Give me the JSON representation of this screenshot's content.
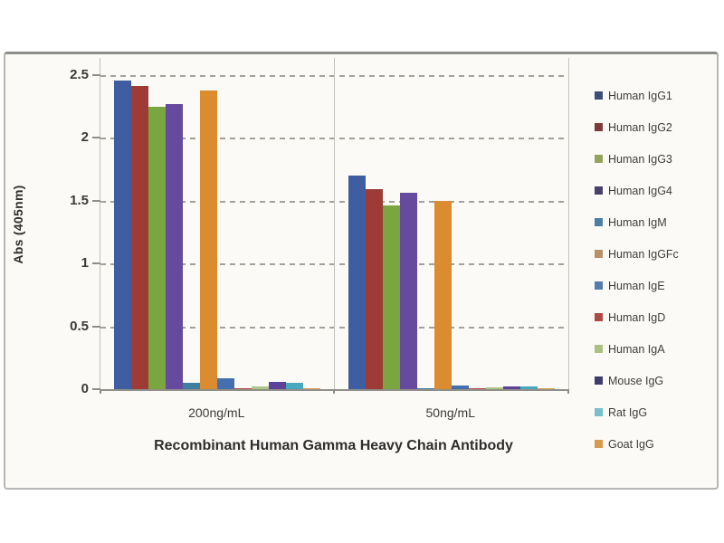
{
  "chart_data": {
    "type": "bar",
    "title": "Recombinant Human Gamma Heavy Chain Antibody",
    "ylabel": "Abs (405nm)",
    "xlabel": "",
    "categories": [
      "200ng/mL",
      "50ng/mL"
    ],
    "ylim": [
      0,
      2.5
    ],
    "yticks": [
      2.5,
      2,
      1.5,
      1,
      0.5,
      0
    ],
    "ytick_labels": [
      "2.5",
      "2",
      "1.5",
      "1",
      "0.5",
      "0"
    ],
    "grid": "horizontal dashed gridlines at every 0.5; vertical divider between category groups",
    "legend_position": "right",
    "series": [
      {
        "name": "Human IgG1",
        "color": "#3e5ea1",
        "swatch": "#3f4c7c",
        "values": [
          2.46,
          1.7
        ]
      },
      {
        "name": "Human IgG2",
        "color": "#9e3b36",
        "swatch": "#7e3a3a",
        "values": [
          2.41,
          1.59
        ]
      },
      {
        "name": "Human IgG3",
        "color": "#7aa63f",
        "swatch": "#94a35c",
        "values": [
          2.25,
          1.46
        ]
      },
      {
        "name": "Human IgG4",
        "color": "#654a9e",
        "swatch": "#49406b",
        "values": [
          2.27,
          1.56
        ]
      },
      {
        "name": "Human IgM",
        "color": "#3f7fa0",
        "swatch": "#4c7fa3",
        "values": [
          0.05,
          0.01
        ]
      },
      {
        "name": "Human IgGFc",
        "color": "#da8c2e",
        "swatch": "#b98f67",
        "values": [
          2.38,
          1.5
        ]
      },
      {
        "name": "Human IgE",
        "color": "#4470b0",
        "swatch": "#587bac",
        "values": [
          0.09,
          0.03
        ]
      },
      {
        "name": "Human IgD",
        "color": "#b44a42",
        "swatch": "#ae4a43",
        "values": [
          0.01,
          0.01
        ]
      },
      {
        "name": "Human IgA",
        "color": "#aec489",
        "swatch": "#abc183",
        "values": [
          0.02,
          0.015
        ]
      },
      {
        "name": "Mouse IgG",
        "color": "#5c4397",
        "swatch": "#3f3c6d",
        "values": [
          0.06,
          0.025
        ]
      },
      {
        "name": "Rat IgG",
        "color": "#48a8be",
        "swatch": "#79becb",
        "values": [
          0.05,
          0.02
        ]
      },
      {
        "name": "Goat IgG",
        "color": "#de9e4c",
        "swatch": "#d79a4f",
        "values": [
          0.01,
          0.01
        ]
      }
    ]
  }
}
